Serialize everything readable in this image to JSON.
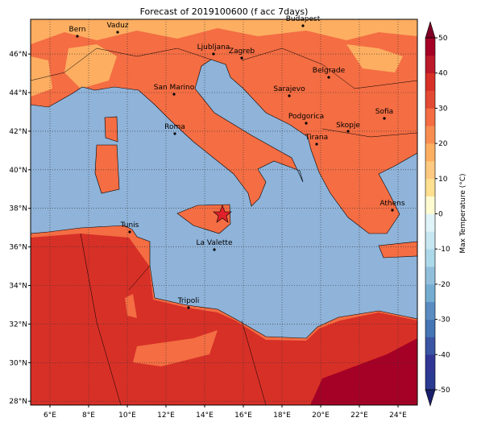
{
  "chart_data": {
    "type": "map",
    "title": "Forecast of 2019100600 (f acc 7days)",
    "xlim": [
      5,
      25
    ],
    "ylim": [
      27.8,
      47.8
    ],
    "xticks": [
      {
        "value": 6,
        "label": "6°E"
      },
      {
        "value": 8,
        "label": "8°E"
      },
      {
        "value": 10,
        "label": "10°E"
      },
      {
        "value": 12,
        "label": "12°E"
      },
      {
        "value": 14,
        "label": "14°E"
      },
      {
        "value": 16,
        "label": "16°E"
      },
      {
        "value": 18,
        "label": "18°E"
      },
      {
        "value": 20,
        "label": "20°E"
      },
      {
        "value": 22,
        "label": "22°E"
      },
      {
        "value": 24,
        "label": "24°E"
      }
    ],
    "yticks": [
      {
        "value": 28,
        "label": "28°N"
      },
      {
        "value": 30,
        "label": "30°N"
      },
      {
        "value": 32,
        "label": "32°N"
      },
      {
        "value": 34,
        "label": "34°N"
      },
      {
        "value": 36,
        "label": "36°N"
      },
      {
        "value": 38,
        "label": "38°N"
      },
      {
        "value": 40,
        "label": "40°N"
      },
      {
        "value": 42,
        "label": "42°N"
      },
      {
        "value": 44,
        "label": "44°N"
      },
      {
        "value": 46,
        "label": "46°N"
      }
    ],
    "grid": true,
    "cities": [
      "Bern",
      "Vaduz",
      "Budapest",
      "Ljubljana",
      "Zagreb",
      "Belgrade",
      "San Marino",
      "Sarajevo",
      "Sofia",
      "Podgorica",
      "Skopje",
      "Roma",
      "Tirana",
      "Athens",
      "Tunis",
      "La Valette",
      "Tripoli"
    ],
    "colorbar": {
      "label": "Max Temperature (°C)",
      "lim": [
        -50,
        50
      ],
      "ticks": [
        -50,
        -40,
        -30,
        -20,
        -10,
        0,
        10,
        20,
        30,
        40,
        50
      ],
      "colors": [
        "#2b3a91",
        "#313695",
        "#3a55a3",
        "#4575b4",
        "#5a8cc2",
        "#74add1",
        "#91bfdb",
        "#abd9e9",
        "#c6e6f0",
        "#e0f3f8",
        "#fffbd0",
        "#fee090",
        "#fec980",
        "#fdae61",
        "#f88d52",
        "#f46d43",
        "#e34a33",
        "#d73027",
        "#bb1a2a",
        "#a50026"
      ],
      "under_color": "#1a1f6b",
      "over_color": "#7f0026"
    }
  }
}
